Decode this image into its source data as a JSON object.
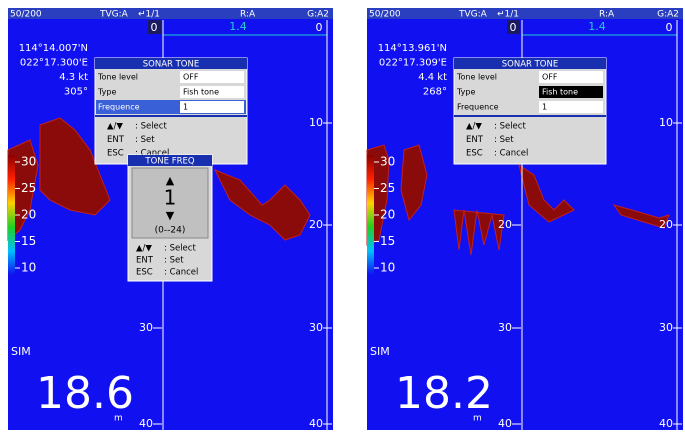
{
  "panels": [
    {
      "header": {
        "range": "50/200",
        "tvg": "TVG:A",
        "page": "↵1/1",
        "r": "R:A",
        "g": "G:A2"
      },
      "top_scale": {
        "left": "0",
        "value": "1.4",
        "right": "0"
      },
      "position": {
        "lat": "114°14.007'N",
        "lon": "022°17.300'E",
        "speed": "4.3 kt",
        "heading": "305°"
      },
      "menu": {
        "title": "SONAR TONE",
        "rows": [
          [
            "Tone level",
            "OFF"
          ],
          [
            "Type",
            "Fish tone"
          ],
          [
            "Frequence",
            "1"
          ]
        ],
        "help": [
          [
            "▲/▼",
            ": Select"
          ],
          [
            "ENT",
            ": Set"
          ],
          [
            "ESC",
            ": Cancel"
          ]
        ]
      },
      "submenu": {
        "title": "TONE FREQ",
        "up": "▲",
        "value": "1",
        "down": "▼",
        "range": "(0--24)",
        "help": [
          [
            "▲/▼",
            ": Select"
          ],
          [
            "ENT",
            ": Set"
          ],
          [
            "ESC",
            ": Cancel"
          ]
        ]
      },
      "depth_right": [
        "10",
        "20",
        "30",
        "40"
      ],
      "depth_mid": [
        "30",
        "40"
      ],
      "color_scale": [
        "30",
        "25",
        "20",
        "15",
        "10"
      ],
      "mode": "SIM",
      "depth": "18.6",
      "depth_unit": "m"
    },
    {
      "header": {
        "range": "50/200",
        "tvg": "TVG:A",
        "page": "↵1/1",
        "r": "R:A",
        "g": "G:A2"
      },
      "top_scale": {
        "left": "0",
        "value": "1.4",
        "right": "0"
      },
      "position": {
        "lat": "114°13.961'N",
        "lon": "022°17.309'E",
        "speed": "4.4 kt",
        "heading": "268°"
      },
      "menu": {
        "title": "SONAR TONE",
        "rows": [
          [
            "Tone level",
            "OFF"
          ],
          [
            "Type",
            "Fish tone"
          ],
          [
            "Frequence",
            "1"
          ]
        ],
        "help": [
          [
            "▲/▼",
            ": Select"
          ],
          [
            "ENT",
            ": Set"
          ],
          [
            "ESC",
            ": Cancel"
          ]
        ]
      },
      "depth_right": [
        "10",
        "20",
        "30",
        "40"
      ],
      "depth_mid": [
        "20",
        "30",
        "40"
      ],
      "color_scale": [
        "30",
        "25",
        "20",
        "15",
        "10"
      ],
      "mode": "SIM",
      "depth": "18.2",
      "depth_unit": "m"
    }
  ]
}
